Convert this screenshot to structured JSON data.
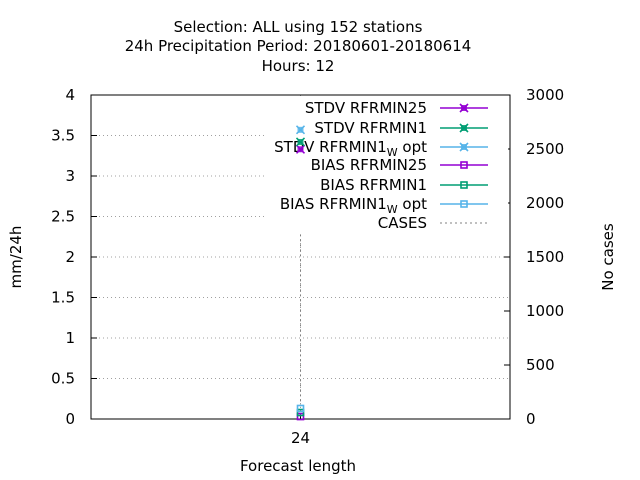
{
  "chart_data": {
    "type": "line",
    "title_lines": [
      "Selection: ALL using   152 stations",
      "24h Precipitation    Period: 20180601-20180614",
      "Hours:  12"
    ],
    "xlabel": "Forecast length",
    "ylabel": "mm/24h",
    "y2label": "No cases",
    "x": [
      24
    ],
    "x_tick_labels": [
      "24"
    ],
    "ylim": [
      0,
      4
    ],
    "y_ticks": [
      "0",
      "0.5",
      "1",
      "1.5",
      "2",
      "2.5",
      "3",
      "3.5",
      "4"
    ],
    "y2lim": [
      0,
      3000
    ],
    "y2_ticks": [
      "0",
      "500",
      "1000",
      "1500",
      "2000",
      "2500",
      "3000"
    ],
    "grid": true,
    "legend_position": "top-right",
    "series": [
      {
        "name": "STDV RFRMIN25",
        "name_main": "STDV RFRMIN25",
        "name_sub": "",
        "name_after": "",
        "values": [
          3.33
        ],
        "color": "#9400d3",
        "marker": "x",
        "axis": "y"
      },
      {
        "name": "STDV RFRMIN1",
        "name_main": "STDV RFRMIN1",
        "name_sub": "",
        "name_after": "",
        "values": [
          3.42
        ],
        "color": "#009e73",
        "marker": "x",
        "axis": "y"
      },
      {
        "name": "STDV RFRMIN1_W opt",
        "name_main": "STDV RFRMIN1",
        "name_sub": "W",
        "name_after": " opt",
        "values": [
          3.57
        ],
        "color": "#56b4e9",
        "marker": "x",
        "axis": "y"
      },
      {
        "name": "BIAS RFRMIN25",
        "name_main": "BIAS RFRMIN25",
        "name_sub": "",
        "name_after": "",
        "values": [
          0.03
        ],
        "color": "#9400d3",
        "marker": "square",
        "axis": "y"
      },
      {
        "name": "BIAS RFRMIN1",
        "name_main": "BIAS RFRMIN1",
        "name_sub": "",
        "name_after": "",
        "values": [
          0.08
        ],
        "color": "#009e73",
        "marker": "square",
        "axis": "y"
      },
      {
        "name": "BIAS RFRMIN1_W opt",
        "name_main": "BIAS RFRMIN1",
        "name_sub": "W",
        "name_after": " opt",
        "values": [
          0.13
        ],
        "color": "#56b4e9",
        "marker": "square",
        "axis": "y"
      },
      {
        "name": "CASES",
        "name_main": "CASES",
        "name_sub": "",
        "name_after": "",
        "values": [
          1710
        ],
        "color": "#808080",
        "marker": "none",
        "dashed": true,
        "axis": "y2"
      }
    ]
  }
}
